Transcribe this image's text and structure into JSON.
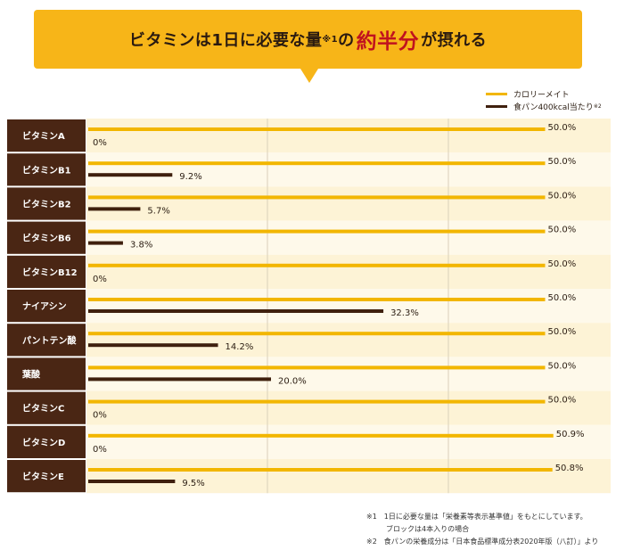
{
  "header": {
    "title_pre": "ビタミンは1日に必要な量",
    "title_note": "※1",
    "title_mid": "の",
    "title_emphasis": "約半分",
    "title_post": "が摂れる"
  },
  "legend": {
    "items": [
      {
        "label": "カロリーメイト",
        "note": "",
        "color": "#f2b600"
      },
      {
        "label": "食パン400kcal当たり",
        "note": "※2",
        "color": "#3f200e"
      }
    ]
  },
  "chart_data": {
    "type": "bar",
    "orientation": "horizontal",
    "title": "ビタミンは1日に必要な量※1の約半分が摂れる",
    "categories": [
      "ビタミンA",
      "ビタミンB1",
      "ビタミンB2",
      "ビタミンB6",
      "ビタミンB12",
      "ナイアシン",
      "パントテン酸",
      "葉酸",
      "ビタミンC",
      "ビタミンD",
      "ビタミンE"
    ],
    "series": [
      {
        "name": "カロリーメイト",
        "color": "#f2b600",
        "values": [
          50.0,
          50.0,
          50.0,
          50.0,
          50.0,
          50.0,
          50.0,
          50.0,
          50.0,
          50.9,
          50.8
        ],
        "labels": [
          "50.0%",
          "50.0%",
          "50.0%",
          "50.0%",
          "50.0%",
          "50.0%",
          "50.0%",
          "50.0%",
          "50.0%",
          "50.9%",
          "50.8%"
        ]
      },
      {
        "name": "食パン400kcal当たり※2",
        "color": "#3f200e",
        "values": [
          0,
          9.2,
          5.7,
          3.8,
          0,
          32.3,
          14.2,
          20.0,
          0,
          0,
          9.5
        ],
        "labels": [
          "0%",
          "9.2%",
          "5.7%",
          "3.8%",
          "0%",
          "32.3%",
          "14.2%",
          "20.0%",
          "0%",
          "0%",
          "9.5%"
        ]
      }
    ],
    "xlim": [
      0,
      60
    ],
    "xlabel": "",
    "ylabel": ""
  },
  "notes": [
    {
      "text": "※1　1日に必要な量は「栄養素等表示基準値」をもとにしています。",
      "sub": false
    },
    {
      "text": "ブロックは4本入りの場合",
      "sub": true
    },
    {
      "text": "※2　食パンの栄養成分は「日本食品標準成分表2020年版（八訂）」より",
      "sub": false
    }
  ]
}
